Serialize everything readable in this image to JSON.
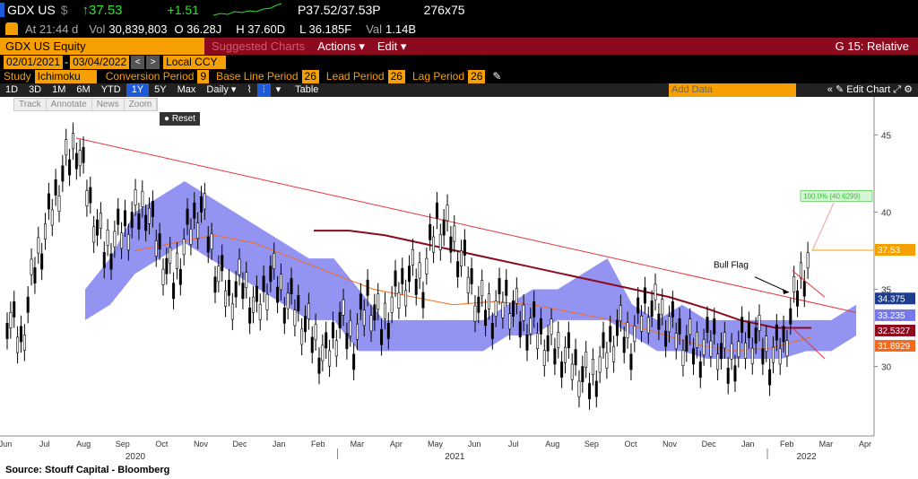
{
  "header": {
    "ticker": "GDX US",
    "currency_sym": "$",
    "price": "↑37.53",
    "change": "+1.51",
    "bidask": "P37.52/37.53P",
    "size": "276x75"
  },
  "stats": {
    "time": "At 21:44 d",
    "vol_label": "Vol",
    "vol": "30,839,803",
    "open": "O 36.28J",
    "high": "H 37.60D",
    "low": "L 36.185F",
    "val_label": "Val",
    "val": "1.14B"
  },
  "titlebar": {
    "security": "GDX US Equity",
    "suggested": "Suggested Charts",
    "actions": "Actions ▾",
    "edit": "Edit ▾",
    "right": "G 15: Relative"
  },
  "daterange": {
    "start": "02/01/2021",
    "end": "03/04/2022",
    "ccy": "Local CCY"
  },
  "study": {
    "label": "Study",
    "name": "Ichimoku",
    "conv_label": "Conversion Period",
    "conv": "9",
    "base_label": "Base Line Period",
    "base": "26",
    "lead_label": "Lead Period",
    "lead": "26",
    "lag_label": "Lag Period",
    "lag": "26"
  },
  "toolbar": {
    "periods": [
      "1D",
      "3D",
      "1M",
      "6M",
      "YTD",
      "1Y",
      "5Y",
      "Max"
    ],
    "selected": "1Y",
    "freq": "Daily ▾",
    "table": "Table",
    "add_data": "Add Data",
    "edit_chart": "Edit Chart"
  },
  "zoomtools": [
    "Track",
    "Annotate",
    "News",
    "Zoom"
  ],
  "reset": "Reset",
  "annotations": {
    "bull_flag": "Bull Flag",
    "target": "100.0% (40.6299)"
  },
  "chart_data": {
    "type": "line",
    "price_labels": [
      "37.53",
      "34.375",
      "33.235",
      "32.5327",
      "31.8929"
    ],
    "price_label_colors": [
      "#f5a000",
      "#1f3b8c",
      "#7777ee",
      "#8b0a1d",
      "#f26b1d"
    ],
    "yticks": [
      30,
      35,
      40,
      45
    ],
    "ylim": [
      25.5,
      47
    ],
    "xticks": [
      "Jun",
      "Jul",
      "Aug",
      "Sep",
      "Oct",
      "Nov",
      "Dec",
      "Jan",
      "Feb",
      "Mar",
      "Apr",
      "May",
      "Jun",
      "Jul",
      "Aug",
      "Sep",
      "Oct",
      "Nov",
      "Dec",
      "Jan",
      "Feb",
      "Mar",
      "Apr"
    ],
    "years": [
      "2020",
      "2021",
      "2022"
    ],
    "close": [
      33.5,
      31.5,
      36.5,
      39.5,
      42.5,
      44.5,
      40.5,
      37.5,
      38.5,
      39.5,
      40.5,
      37.5,
      35.5,
      38.5,
      40.5,
      36.5,
      34.5,
      35.5,
      33.5,
      36.0,
      34.5,
      33.5,
      32.0,
      30.5,
      33.0,
      31.5,
      34.5,
      32.5,
      34.5,
      36.0,
      35.5,
      39.5,
      38.5,
      36.5,
      34.0,
      33.5,
      34.5,
      33.0,
      32.5,
      31.5,
      31.0,
      30.0,
      29.0,
      30.5,
      32.5,
      31.5,
      34.0,
      33.5,
      32.5,
      31.5,
      31.0,
      32.0,
      30.0,
      31.5,
      32.0,
      30.5,
      31.5,
      35.0,
      37.5
    ],
    "cloud_top": [
      35,
      37,
      40,
      41,
      42,
      41,
      40,
      39,
      38,
      37,
      37,
      35,
      33,
      33,
      33,
      33,
      33,
      34,
      35,
      35,
      36,
      37,
      34,
      33,
      34,
      33,
      33,
      33,
      33,
      33,
      33,
      34
    ],
    "cloud_bot": [
      33,
      34,
      36,
      37,
      38,
      37,
      36,
      35,
      34,
      33,
      33,
      31,
      31,
      31,
      31,
      31,
      31,
      32,
      32,
      33,
      33,
      33,
      32,
      31,
      31,
      30.5,
      30.5,
      30.5,
      30.5,
      31,
      31,
      32
    ],
    "base_line": [
      38.8,
      38.8,
      38.5,
      38.0,
      37.5,
      37.0,
      36.5,
      36.0,
      35.5,
      35.0,
      34.5,
      33.8,
      33.0,
      32.5,
      32.5
    ],
    "ma_line": [
      37.5,
      38.0,
      38.5,
      38.0,
      37.0,
      36.0,
      35.0,
      34.5,
      34.0,
      34.2,
      34.0,
      33.5,
      33.0,
      32.3,
      31.5,
      31.0,
      31.2,
      31.9
    ]
  }
}
